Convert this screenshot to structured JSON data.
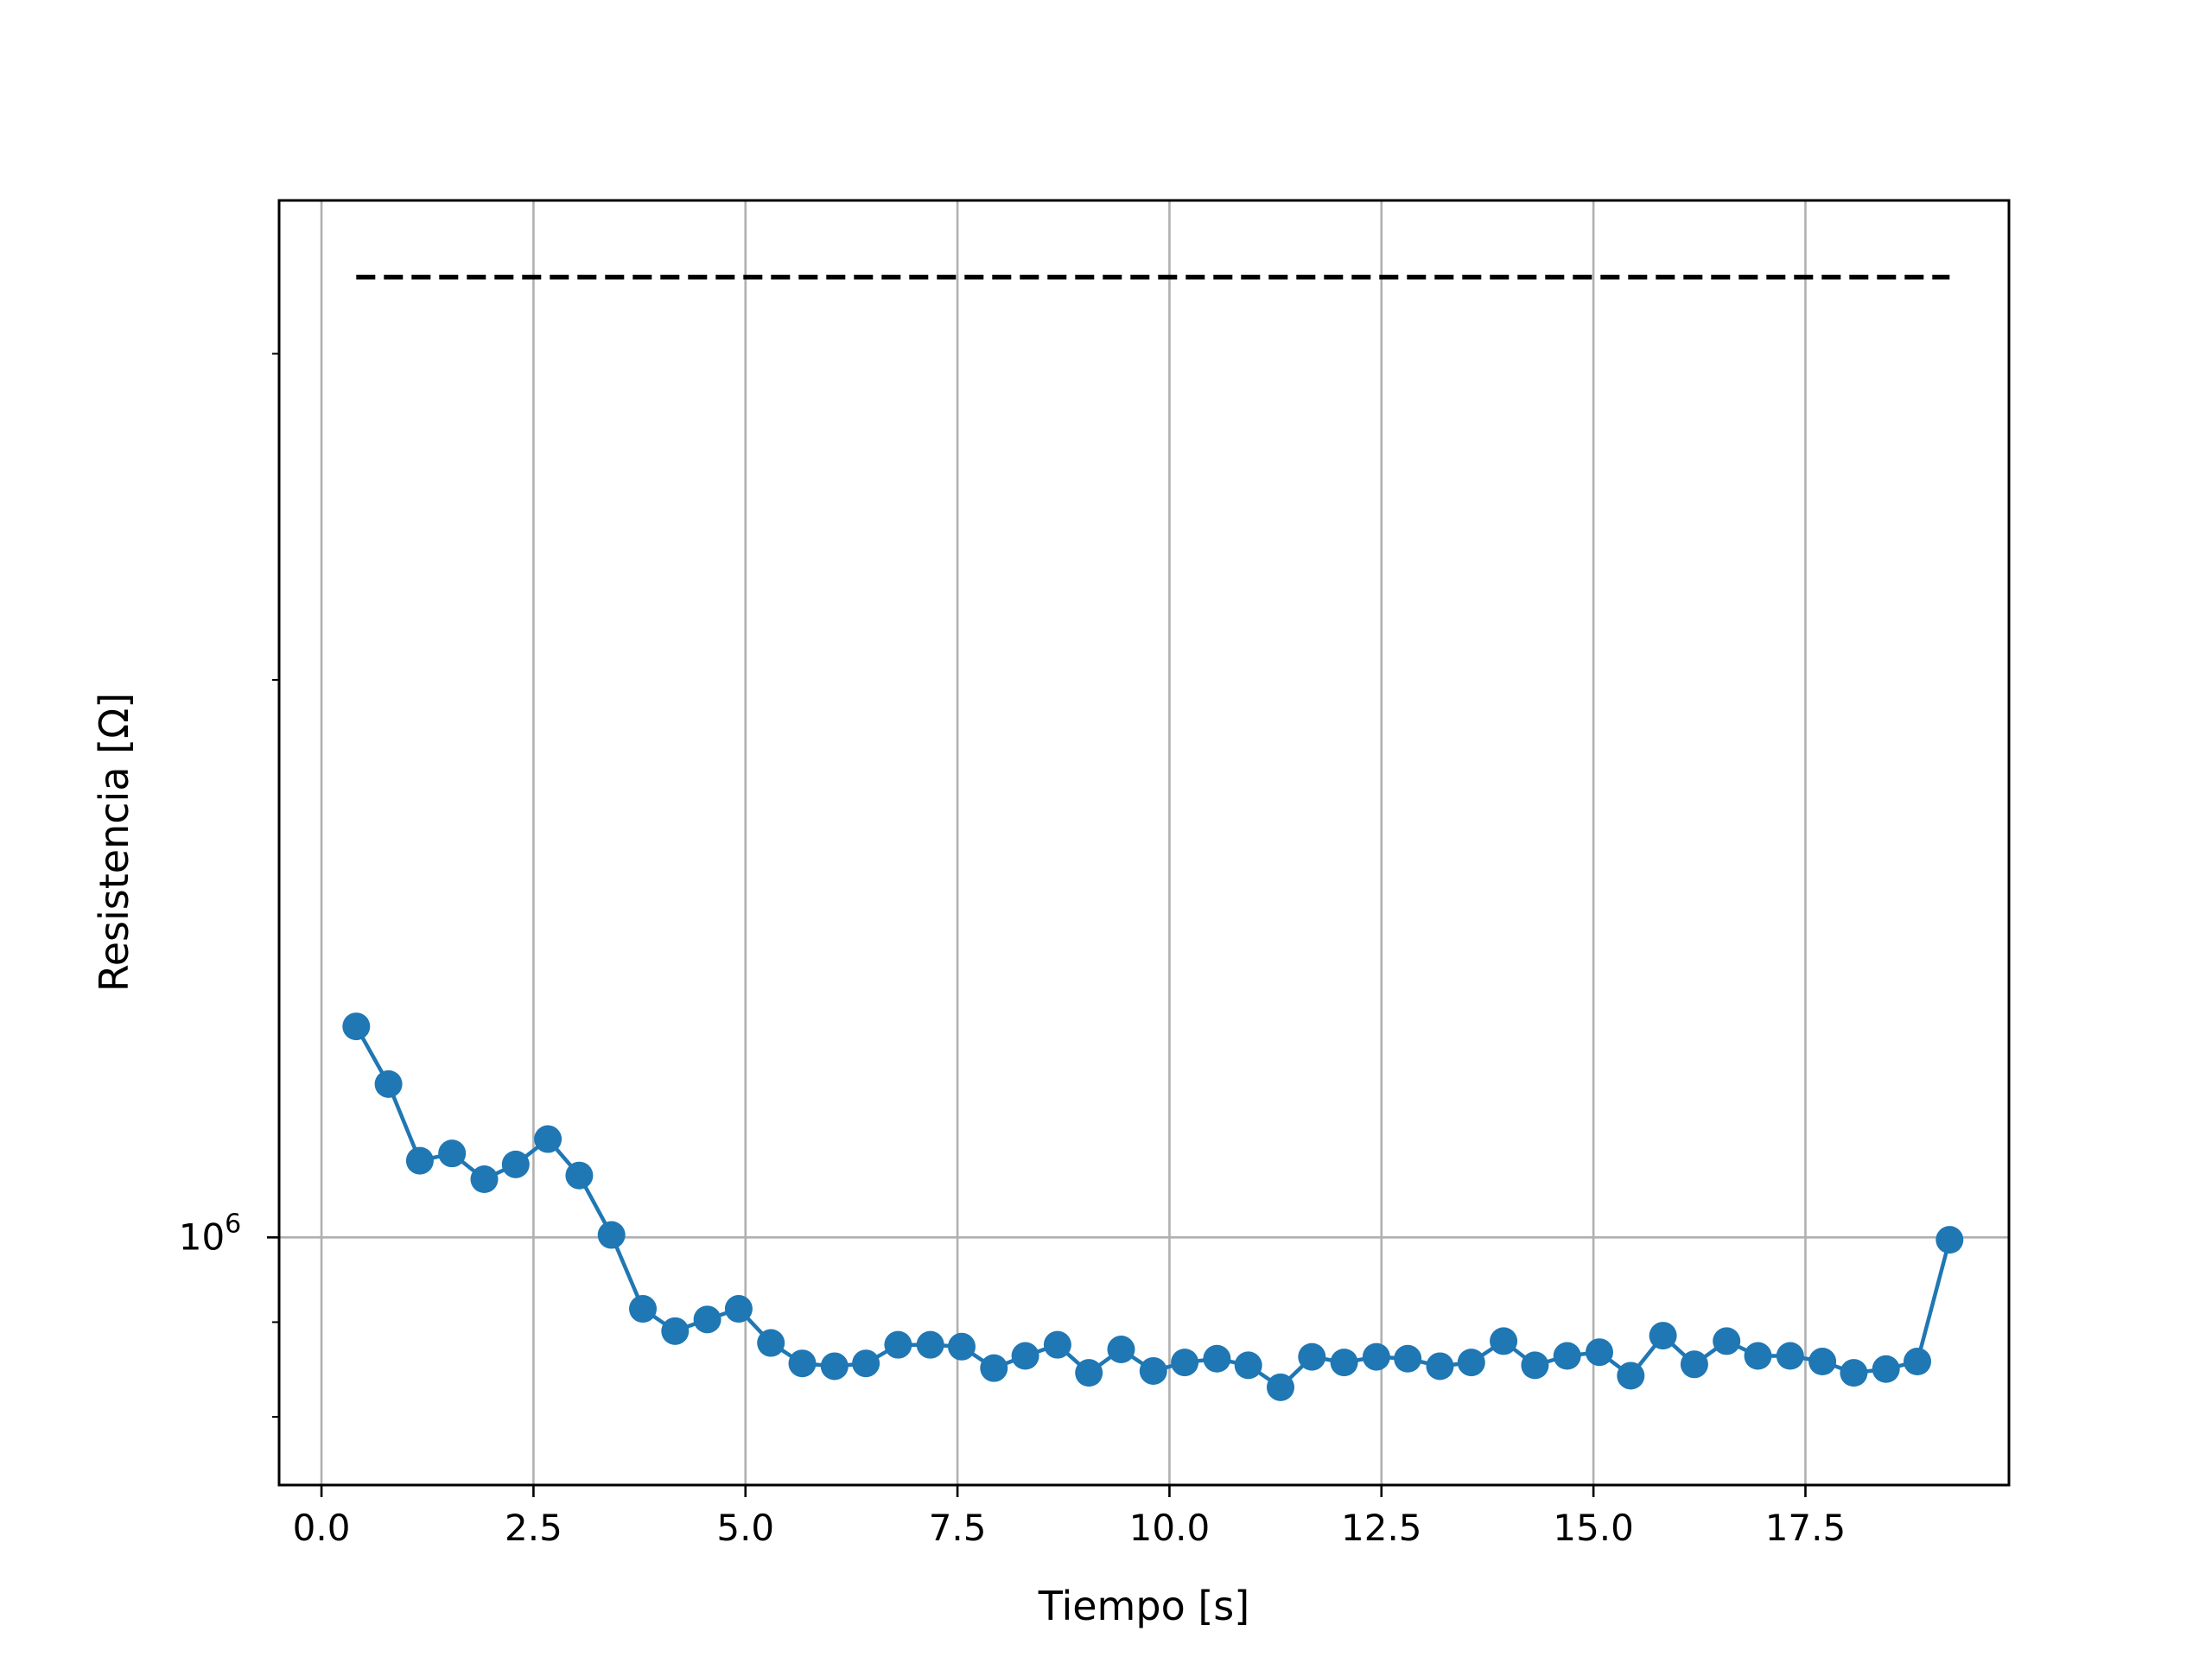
{
  "chart_data": {
    "type": "line",
    "title": "",
    "xlabel": "Tiempo [s]",
    "ylabel": "Resistencia [Ω]",
    "x_scale": "linear",
    "y_scale": "log",
    "xlim": [
      -0.5,
      19.9
    ],
    "ylim": [
      735000,
      3630000
    ],
    "grid": true,
    "x_ticks": [
      0.0,
      2.5,
      5.0,
      7.5,
      10.0,
      12.5,
      15.0,
      17.5
    ],
    "x_tick_labels": [
      "0.0",
      "2.5",
      "5.0",
      "7.5",
      "10.0",
      "12.5",
      "15.0",
      "17.5"
    ],
    "y_ticks": [
      1000000
    ],
    "y_tick_base": "10",
    "y_tick_exponent": "6",
    "y_minor_ticks": [
      800000,
      900000,
      2000000,
      3000000
    ],
    "series": [
      {
        "name": "",
        "color": "#1f77b4",
        "style": "line-marker",
        "x": [
          0.41,
          0.79,
          1.16,
          1.54,
          1.92,
          2.29,
          2.67,
          3.04,
          3.42,
          3.79,
          4.17,
          4.55,
          4.92,
          5.3,
          5.67,
          6.05,
          6.42,
          6.8,
          7.18,
          7.55,
          7.93,
          8.3,
          8.68,
          9.05,
          9.43,
          9.81,
          10.18,
          10.56,
          10.93,
          11.31,
          11.68,
          12.06,
          12.44,
          12.81,
          13.19,
          13.56,
          13.94,
          14.31,
          14.69,
          15.07,
          15.44,
          15.82,
          16.19,
          16.57,
          16.94,
          17.32,
          17.7,
          18.07,
          18.45,
          18.82,
          19.2
        ],
        "y": [
          1300000,
          1210000,
          1100000,
          1110000,
          1075000,
          1095000,
          1130000,
          1080000,
          1003000,
          915000,
          890000,
          903000,
          915000,
          877000,
          855000,
          852000,
          855000,
          875000,
          875000,
          873000,
          850000,
          863000,
          875000,
          845000,
          870000,
          847000,
          856000,
          860000,
          853000,
          830000,
          862000,
          856000,
          862000,
          860000,
          852000,
          856000,
          879000,
          853000,
          863000,
          867000,
          842000,
          885000,
          854000,
          879000,
          863000,
          863000,
          857000,
          845000,
          849000,
          857000,
          997000
        ]
      },
      {
        "name": "",
        "color": "#000000",
        "style": "dashed",
        "x": [
          0.41,
          19.2
        ],
        "y": [
          3300000,
          3300000
        ]
      }
    ]
  }
}
